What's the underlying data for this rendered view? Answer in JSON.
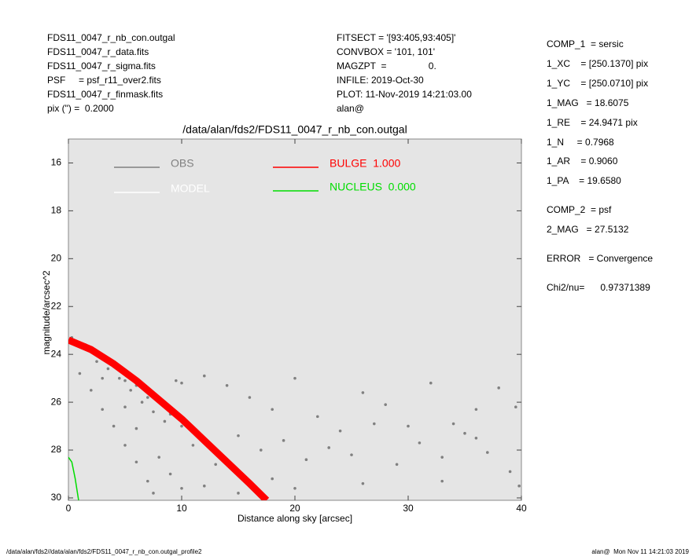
{
  "header": {
    "left": [
      "FDS11_0047_r_nb_con.outgal",
      "FDS11_0047_r_data.fits",
      "FDS11_0047_r_sigma.fits",
      "PSF     = psf_r11_over2.fits",
      "FDS11_0047_r_finmask.fits",
      "pix (\") =  0.2000"
    ],
    "middle": [
      "FITSECT = '[93:405,93:405]'",
      "CONVBOX = '101, 101'",
      "MAGZPT  =                0.",
      "INFILE: 2019-Oct-30",
      "PLOT: 11-Nov-2019 14:21:03.00",
      "alan@"
    ],
    "right": [
      "COMP_1  = sersic",
      "1_XC    = [250.1370] pix",
      "1_YC    = [250.0710] pix",
      "1_MAG   = 18.6075",
      "1_RE    = 24.9471 pix",
      "1_N     = 0.7968",
      "1_AR    = 0.9060",
      "1_PA    = 19.6580",
      "COMP_2  = psf",
      "2_MAG   = 27.5132",
      "ERROR   = Convergence",
      "Chi2/nu=      0.97371389"
    ]
  },
  "footer": {
    "left": "/data/alan/fds2//data/alan/fds2/FDS11_0047_r_nb_con.outgal_profile2",
    "right": "alan@  Mon Nov 11 14:21:03 2019"
  },
  "chart_data": {
    "type": "scatter",
    "title": "/data/alan/fds2/FDS11_0047_r_nb_con.outgal",
    "x_label": "Distance along sky [arcsec]",
    "y_label": "magnitude/arcsec^2",
    "xlim": [
      0,
      40
    ],
    "ylim": [
      15.0,
      30.1
    ],
    "y_inverted": true,
    "xticks": [
      0,
      10,
      20,
      30,
      40
    ],
    "yticks": [
      16,
      18,
      20,
      22,
      24,
      26,
      28,
      30
    ],
    "series": [
      {
        "name": "OBS",
        "color": "#808080",
        "style": "points",
        "x": [
          0.3,
          0.8,
          1.5,
          2,
          2.5,
          3,
          3.5,
          4,
          4.5,
          5,
          5.5,
          6,
          6.5,
          7,
          7.5,
          8,
          8.5,
          9,
          9.5,
          10,
          1,
          2,
          3,
          4,
          5,
          6,
          7,
          7.5,
          3,
          5,
          6,
          8,
          9,
          10,
          10,
          12,
          14,
          16,
          18,
          20,
          22,
          24,
          26,
          28,
          30,
          32,
          34,
          36,
          38,
          39.5,
          11,
          13,
          15,
          17,
          19,
          21,
          23,
          25,
          27,
          29,
          31,
          33,
          35,
          37,
          39,
          12,
          15,
          18,
          20,
          26,
          33,
          39.8,
          36
        ],
        "values": [
          23.3,
          23.5,
          23.6,
          23.9,
          24.3,
          24.2,
          24.6,
          24.5,
          25.0,
          25.1,
          25.5,
          25.3,
          26.0,
          25.8,
          26.4,
          25.9,
          26.8,
          26.5,
          25.1,
          27.0,
          24.8,
          25.5,
          26.3,
          27.0,
          27.8,
          28.5,
          29.3,
          29.8,
          25.0,
          26.2,
          27.1,
          28.3,
          29.0,
          29.6,
          25.2,
          24.9,
          25.3,
          25.8,
          26.3,
          25.0,
          26.6,
          27.2,
          25.6,
          26.1,
          27.0,
          25.2,
          26.9,
          27.5,
          25.4,
          26.2,
          27.8,
          28.6,
          27.4,
          28.0,
          27.6,
          28.4,
          27.9,
          28.2,
          26.9,
          28.6,
          27.7,
          28.3,
          27.3,
          28.1,
          28.9,
          29.5,
          29.8,
          29.2,
          29.6,
          29.4,
          29.3,
          29.5,
          26.3
        ]
      },
      {
        "name": "MODEL",
        "color": "#ffffff",
        "style": "line",
        "x": [
          0,
          2,
          4,
          6,
          8,
          10,
          12,
          14,
          16,
          17.5
        ],
        "values": [
          23.4,
          23.8,
          24.4,
          25.1,
          25.9,
          26.7,
          27.6,
          28.5,
          29.4,
          30.1
        ]
      },
      {
        "name": "BULGE  1.000",
        "color": "#ff0000",
        "style": "band",
        "x": [
          0,
          2,
          4,
          6,
          8,
          10,
          12,
          14,
          16,
          17.5
        ],
        "values": [
          23.4,
          23.8,
          24.4,
          25.1,
          25.9,
          26.7,
          27.6,
          28.5,
          29.4,
          30.1
        ]
      },
      {
        "name": "NUCLEUS  0.000",
        "color": "#00dd00",
        "style": "line",
        "x": [
          0,
          0.3,
          0.6,
          0.9
        ],
        "values": [
          28.3,
          28.5,
          29.2,
          30.1
        ]
      }
    ]
  }
}
